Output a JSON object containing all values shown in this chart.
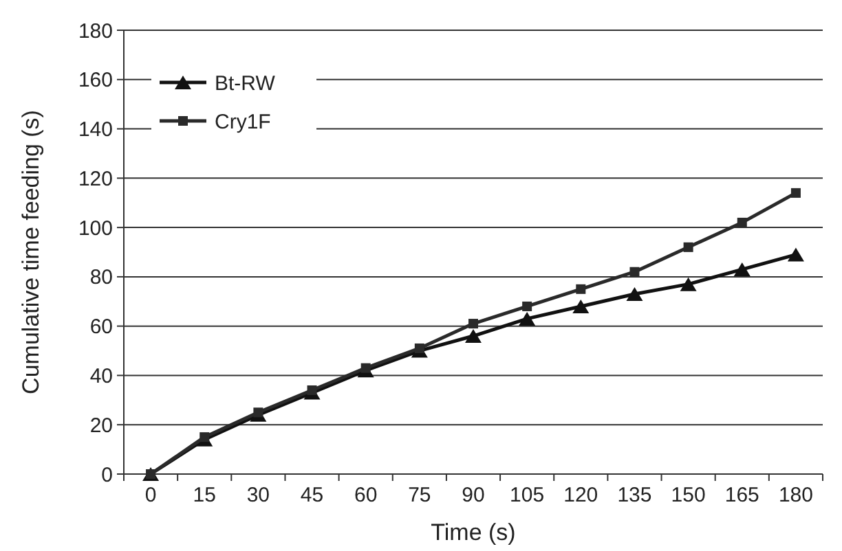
{
  "chart_data": {
    "type": "line",
    "xlabel": "Time (s)",
    "ylabel": "Cumulative time feeding (s)",
    "categories": [
      "0",
      "15",
      "30",
      "45",
      "60",
      "75",
      "90",
      "105",
      "120",
      "135",
      "150",
      "165",
      "180"
    ],
    "series": [
      {
        "name": "Bt-RW",
        "color": "#111111",
        "marker": "triangle",
        "values": [
          0,
          14,
          24,
          33,
          42,
          50,
          56,
          63,
          68,
          73,
          77,
          83,
          89
        ]
      },
      {
        "name": "Cry1F",
        "color": "#2a2a2a",
        "marker": "square",
        "values": [
          0,
          15,
          25,
          34,
          43,
          51,
          61,
          68,
          75,
          82,
          92,
          102,
          114
        ]
      }
    ],
    "ylim": [
      0,
      180
    ],
    "yticks": [
      0,
      20,
      40,
      60,
      80,
      100,
      120,
      140,
      160,
      180
    ],
    "grid": "y",
    "legend": "top left",
    "line_style": "solid"
  }
}
